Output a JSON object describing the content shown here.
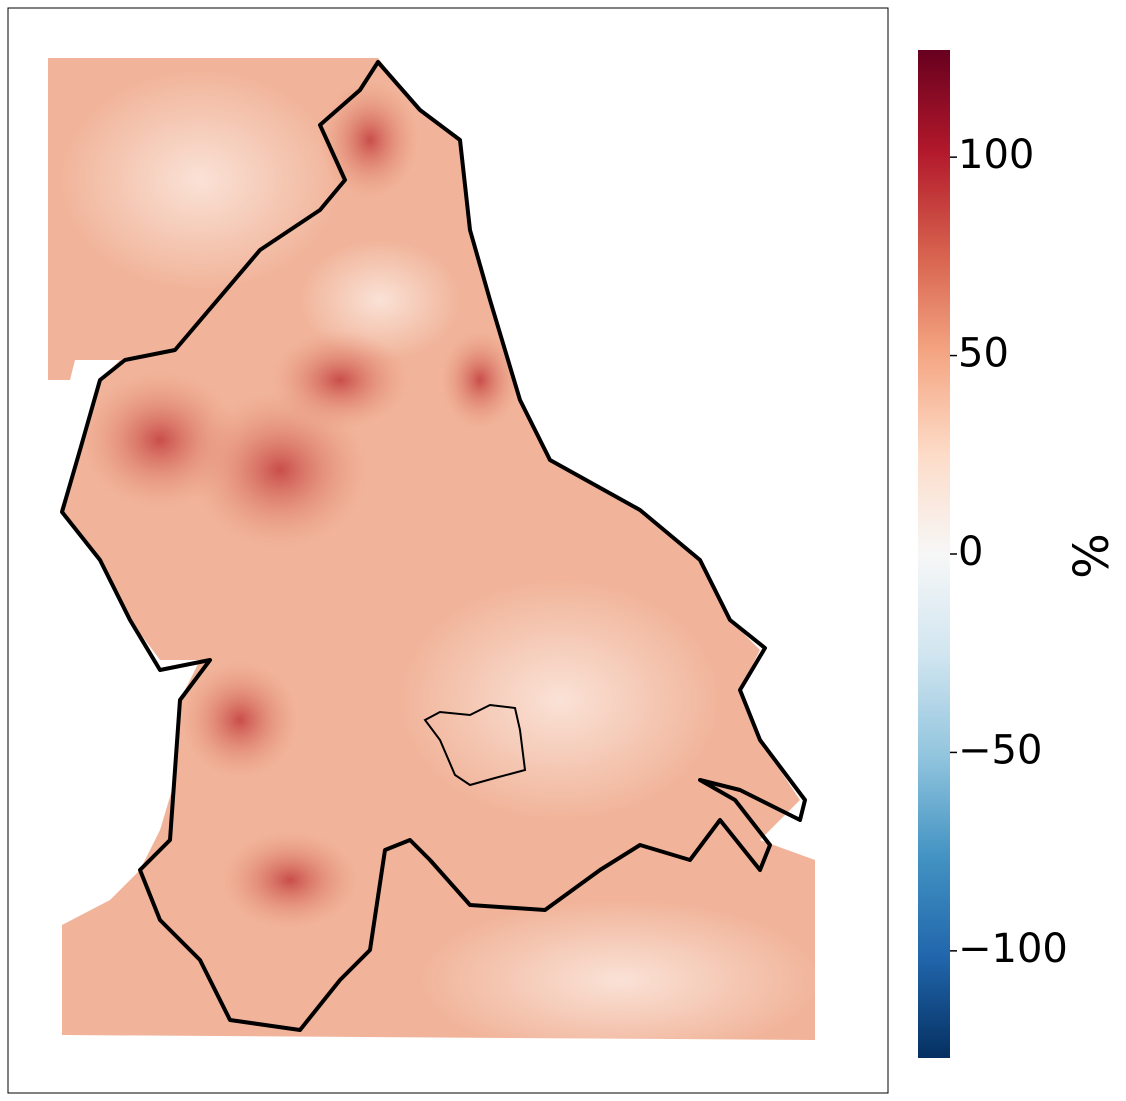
{
  "chart_data": {
    "type": "map",
    "colorbar": {
      "label": "%",
      "lim": [
        -127,
        127
      ],
      "ticks": [
        {
          "value": -100,
          "label": "−100"
        },
        {
          "value": -50,
          "label": "−50"
        },
        0,
        50,
        100
      ],
      "colormap": [
        "#053061",
        "#2166ac",
        "#4393c3",
        "#92c5de",
        "#d1e5f0",
        "#f7f7f7",
        "#fddbc7",
        "#f4a582",
        "#d6604d",
        "#b2182b",
        "#67001f"
      ]
    }
  }
}
